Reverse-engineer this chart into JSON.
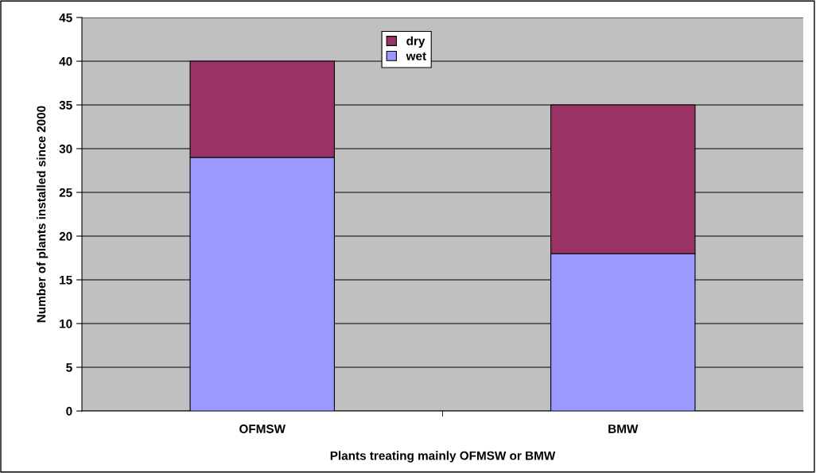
{
  "chart_data": {
    "type": "bar",
    "stacked": true,
    "xlabel": "Plants treating mainly OFMSW or BMW",
    "ylabel": "Number of plants installed since 2000",
    "categories": [
      "OFMSW",
      "BMW"
    ],
    "series": [
      {
        "name": "wet",
        "color": "#9999ff",
        "values": [
          29,
          18
        ]
      },
      {
        "name": "dry",
        "color": "#993366",
        "values": [
          11,
          17
        ]
      }
    ],
    "ylim": [
      0,
      45
    ],
    "yticks": [
      0,
      5,
      10,
      15,
      20,
      25,
      30,
      35,
      40,
      45
    ],
    "grid": "y",
    "legend": "top"
  }
}
